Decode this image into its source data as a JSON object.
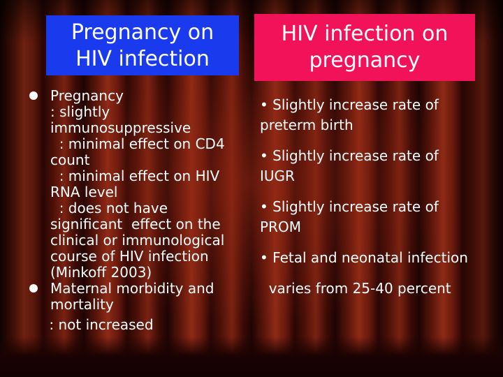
{
  "titles": {
    "left": [
      "Pregnancy on",
      "HIV infection"
    ],
    "right": [
      "HIV infection on",
      "pregnancy"
    ]
  },
  "left_column": {
    "item1": {
      "heading": "Pregnancy",
      "lines": [
        ": slightly",
        "immunosuppressive",
        "  : minimal effect on CD4",
        "count",
        "  : minimal effect on HIV",
        "RNA level",
        "  : does not have",
        "significant  effect on the",
        "clinical or immunological",
        "course of HIV infection",
        "(Minkoff 2003)"
      ]
    },
    "item2": {
      "heading": "Maternal morbidity and",
      "lines": [
        "mortality",
        " : not increased"
      ]
    }
  },
  "right_column": {
    "items": [
      [
        "• Slightly increase rate of",
        "preterm birth"
      ],
      [
        "• Slightly increase rate of",
        "IUGR"
      ],
      [
        "• Slightly increase rate of",
        "PROM"
      ],
      [
        "• Fetal and neonatal infection"
      ]
    ],
    "trailing": "  varies from 25-40 percent"
  }
}
